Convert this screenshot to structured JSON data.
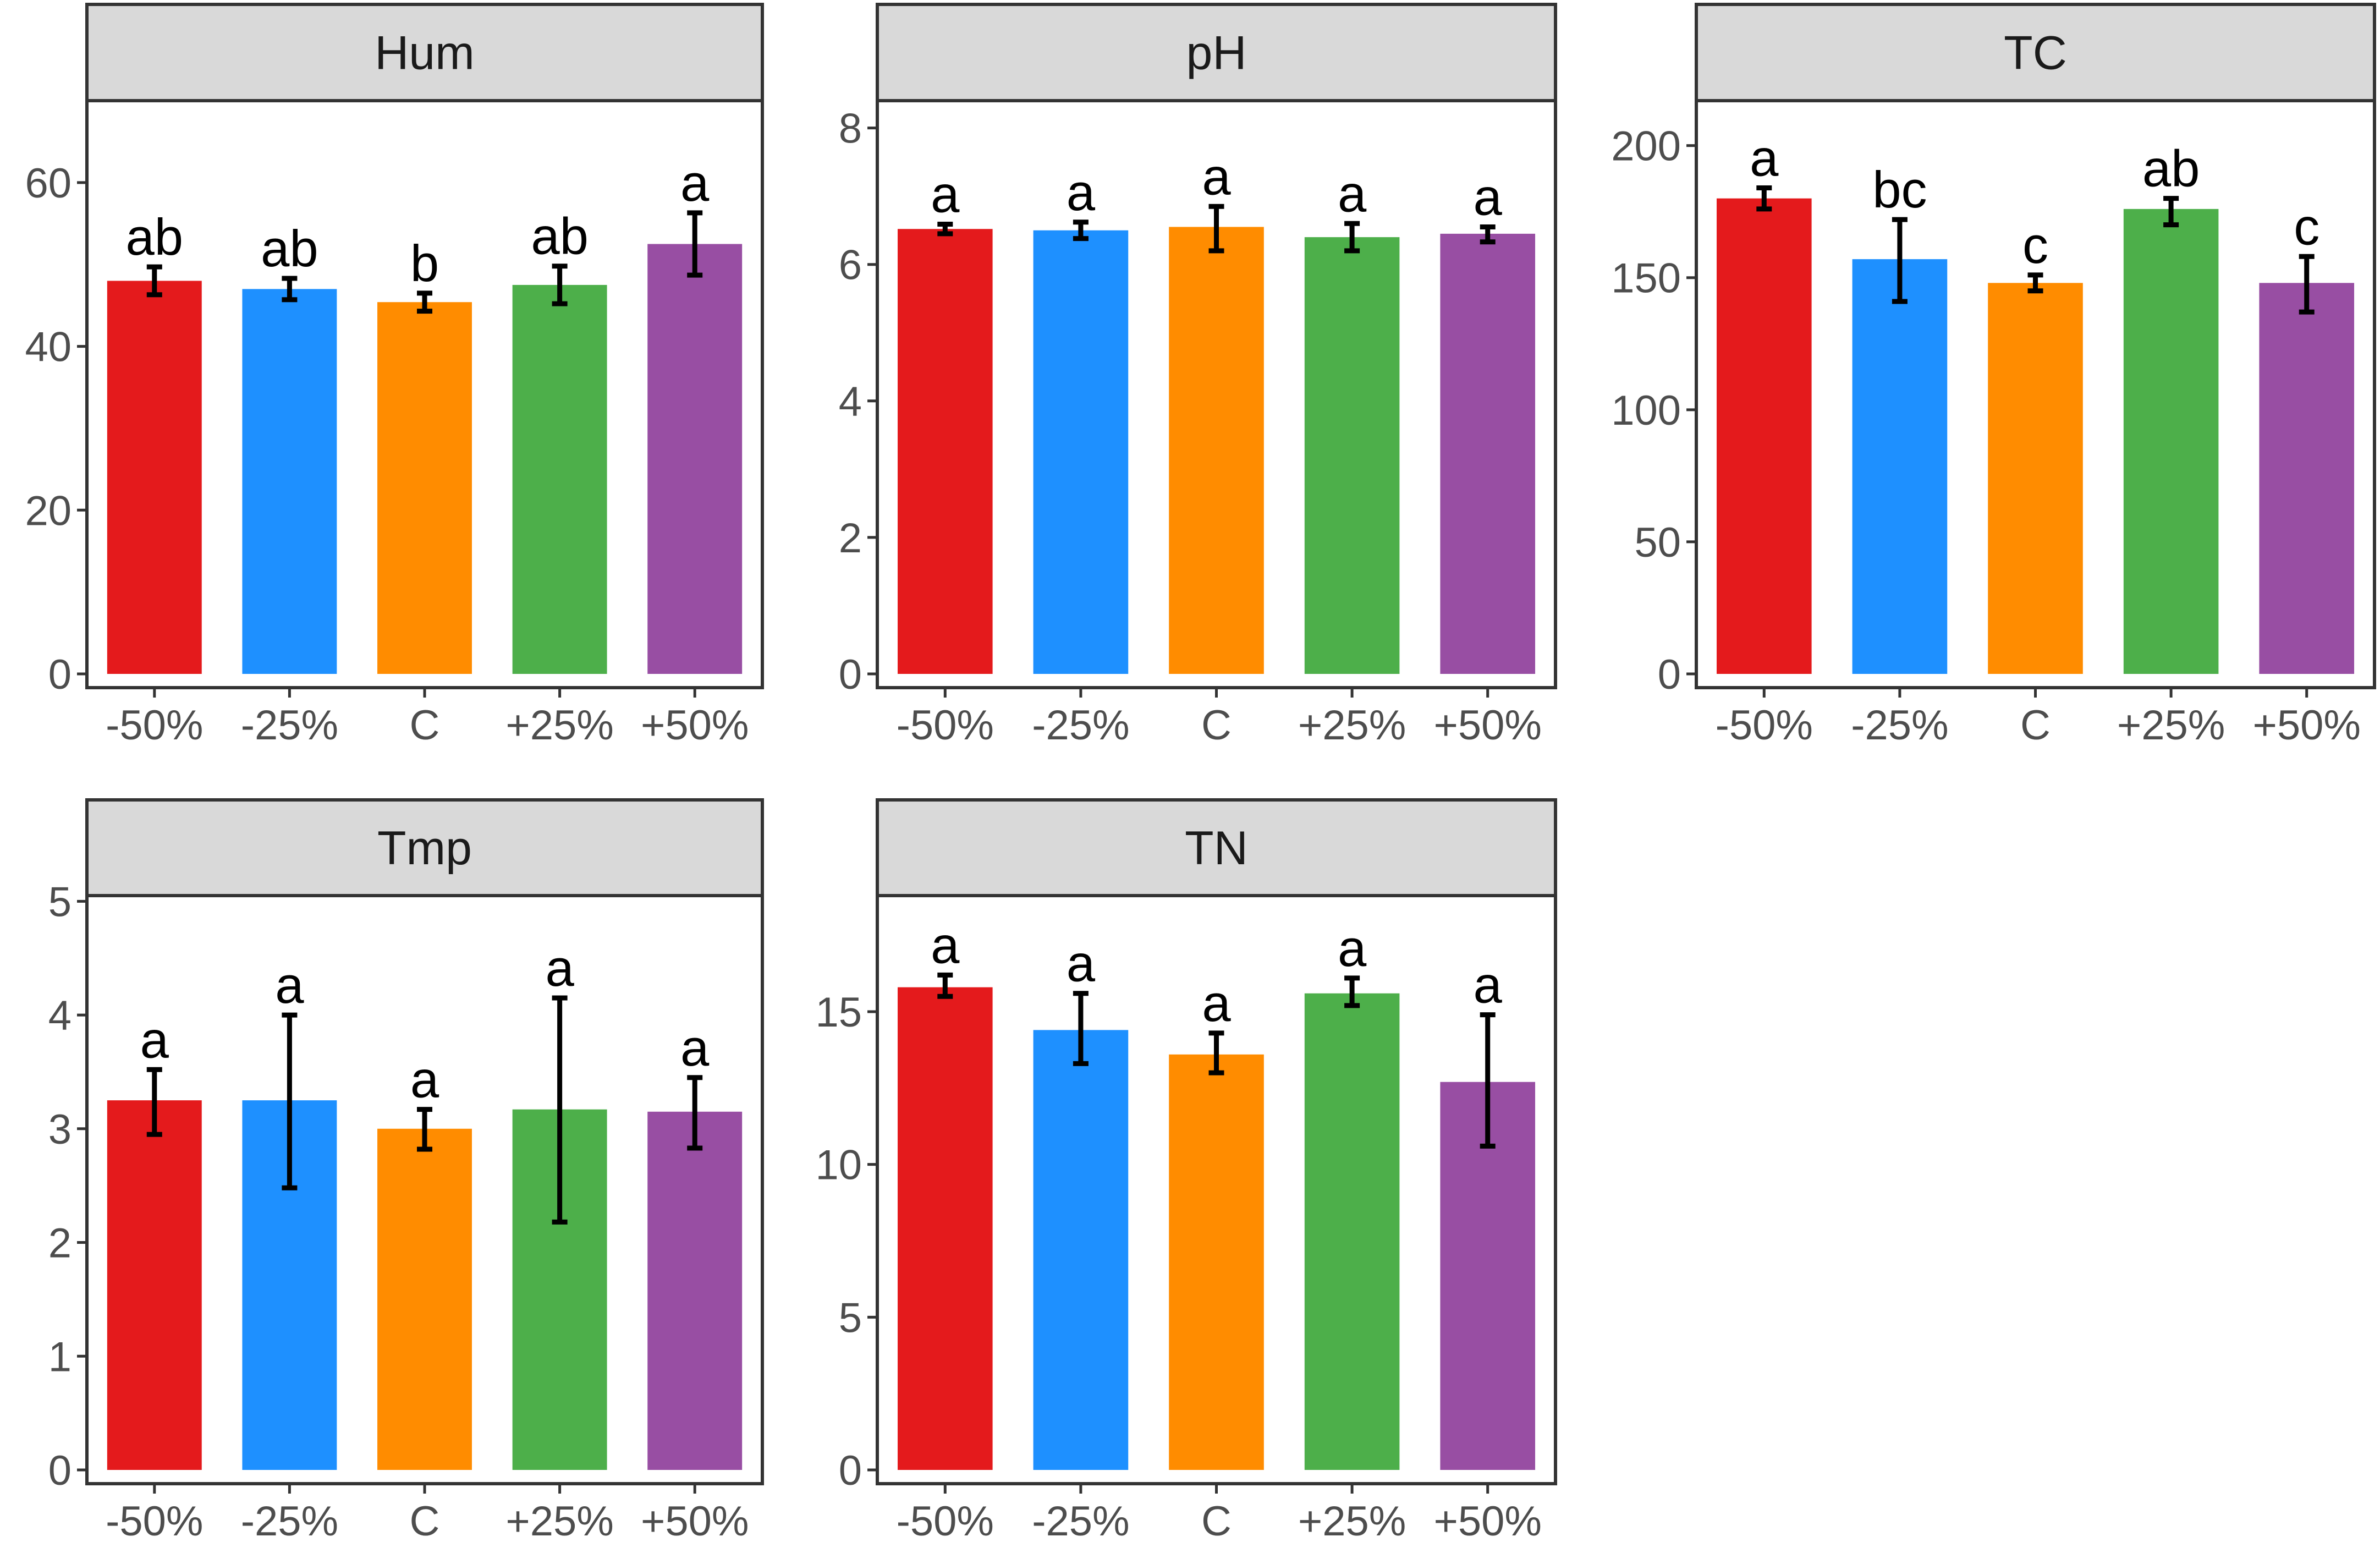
{
  "chart_data": [
    {
      "type": "bar",
      "title": "Hum",
      "categories": [
        "-50%",
        "-25%",
        "C",
        "+25%",
        "+50%"
      ],
      "values": [
        48,
        47,
        45.4,
        47.5,
        52.5
      ],
      "error_low": [
        46.3,
        45.7,
        44.3,
        45.2,
        48.7
      ],
      "error_high": [
        49.7,
        48.3,
        46.5,
        49.8,
        56.3
      ],
      "significance": [
        "ab",
        "ab",
        "b",
        "ab",
        "a"
      ],
      "colors": [
        "#e41a1c",
        "#1e90ff",
        "#ff8c00",
        "#4daf4a",
        "#984ea3"
      ],
      "ylim": [
        0,
        70
      ],
      "yticks": [
        0,
        20,
        40,
        60
      ],
      "ytick_labels": [
        "0",
        "20",
        "40",
        "60"
      ]
    },
    {
      "type": "bar",
      "title": "pH",
      "categories": [
        "-50%",
        "-25%",
        "C",
        "+25%",
        "+50%"
      ],
      "values": [
        6.52,
        6.5,
        6.55,
        6.4,
        6.45
      ],
      "error_low": [
        6.45,
        6.38,
        6.2,
        6.2,
        6.33
      ],
      "error_high": [
        6.59,
        6.62,
        6.85,
        6.6,
        6.55
      ],
      "significance": [
        "a",
        "a",
        "a",
        "a",
        "a"
      ],
      "colors": [
        "#e41a1c",
        "#1e90ff",
        "#ff8c00",
        "#4daf4a",
        "#984ea3"
      ],
      "ylim": [
        0,
        8.4
      ],
      "yticks": [
        0,
        2,
        4,
        6,
        8
      ],
      "ytick_labels": [
        "0",
        "2",
        "4",
        "6",
        "8"
      ]
    },
    {
      "type": "bar",
      "title": "TC",
      "categories": [
        "-50%",
        "-25%",
        "C",
        "+25%",
        "+50%"
      ],
      "values": [
        180,
        157,
        148,
        176,
        148
      ],
      "error_low": [
        176,
        141,
        145,
        170,
        137
      ],
      "error_high": [
        184,
        172,
        151,
        180,
        158
      ],
      "significance": [
        "a",
        "bc",
        "c",
        "ab",
        "c"
      ],
      "colors": [
        "#e41a1c",
        "#1e90ff",
        "#ff8c00",
        "#4daf4a",
        "#984ea3"
      ],
      "ylim": [
        0,
        217
      ],
      "yticks": [
        0,
        50,
        100,
        150,
        200
      ],
      "ytick_labels": [
        "0",
        "50",
        "100",
        "150",
        "200"
      ]
    },
    {
      "type": "bar",
      "title": "Tmp",
      "categories": [
        "-50%",
        "-25%",
        "C",
        "+25%",
        "+50%"
      ],
      "values": [
        3.25,
        3.25,
        3.0,
        3.17,
        3.15
      ],
      "error_low": [
        2.95,
        2.48,
        2.82,
        2.18,
        2.83
      ],
      "error_high": [
        3.52,
        4.0,
        3.17,
        4.15,
        3.45
      ],
      "significance": [
        "a",
        "a",
        "a",
        "a",
        "a"
      ],
      "colors": [
        "#e41a1c",
        "#1e90ff",
        "#ff8c00",
        "#4daf4a",
        "#984ea3"
      ],
      "ylim": [
        0,
        5.05
      ],
      "yticks": [
        0,
        1,
        2,
        3,
        4,
        5
      ],
      "ytick_labels": [
        "0",
        "1",
        "2",
        "3",
        "4",
        "5"
      ]
    },
    {
      "type": "bar",
      "title": "TN",
      "categories": [
        "-50%",
        "-25%",
        "C",
        "+25%",
        "+50%"
      ],
      "values": [
        15.8,
        14.4,
        13.6,
        15.6,
        12.7
      ],
      "error_low": [
        15.5,
        13.3,
        13.0,
        15.2,
        10.6
      ],
      "error_high": [
        16.2,
        15.6,
        14.3,
        16.1,
        14.9
      ],
      "significance": [
        "a",
        "a",
        "a",
        "a",
        "a"
      ],
      "colors": [
        "#e41a1c",
        "#1e90ff",
        "#ff8c00",
        "#4daf4a",
        "#984ea3"
      ],
      "ylim": [
        0,
        18.8
      ],
      "yticks": [
        0,
        5,
        10,
        15
      ],
      "ytick_labels": [
        "0",
        "5",
        "10",
        "15"
      ]
    }
  ]
}
